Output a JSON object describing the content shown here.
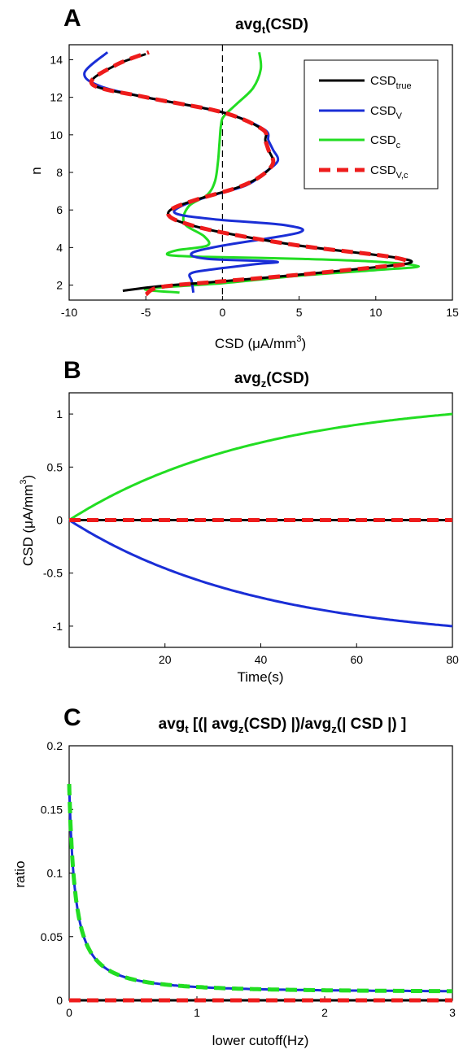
{
  "chart_data": [
    {
      "panel": "A",
      "type": "line",
      "title": {
        "main": "avg",
        "sub": "t",
        "tail": "(CSD)"
      },
      "xlabel": {
        "main": "CSD (μA/mm",
        "sup": "3",
        "tail": ")"
      },
      "ylabel": "n",
      "xlim": [
        -10,
        15
      ],
      "ylim": [
        1.2,
        14.8
      ],
      "xticks": [
        -10,
        -5,
        0,
        5,
        10,
        15
      ],
      "yticks": [
        2,
        4,
        6,
        8,
        10,
        12,
        14
      ],
      "grid": false,
      "legend_position": "top-right",
      "colors": {
        "true": "#000000",
        "V": "#1a2ed6",
        "c": "#22dd22",
        "Vc": "#ee1c1c",
        "ref": "#000000"
      },
      "legend": [
        {
          "main": "CSD",
          "sub": "true"
        },
        {
          "main": "CSD",
          "sub": "V"
        },
        {
          "main": "CSD",
          "sub": "c"
        },
        {
          "main": "CSD",
          "sub": "V,c"
        }
      ],
      "series": [
        {
          "key": "true",
          "color": "#000000",
          "dashed": false,
          "points": [
            [
              -6.5,
              1.7
            ],
            [
              -4,
              1.95
            ],
            [
              0,
              2.2
            ],
            [
              5,
              2.55
            ],
            [
              10,
              2.95
            ],
            [
              12.3,
              3.2
            ],
            [
              11,
              3.5
            ],
            [
              5,
              4.1
            ],
            [
              0,
              4.8
            ],
            [
              -2.5,
              5.3
            ],
            [
              -3.5,
              5.7
            ],
            [
              -3.2,
              6.1
            ],
            [
              -1.5,
              6.6
            ],
            [
              1,
              7.2
            ],
            [
              2.5,
              7.8
            ],
            [
              3.3,
              8.5
            ],
            [
              3,
              9.2
            ],
            [
              2.8,
              9.7
            ],
            [
              2.6,
              10.3
            ],
            [
              0,
              11.2
            ],
            [
              -5,
              12
            ],
            [
              -8.5,
              12.7
            ],
            [
              -7,
              13.7
            ],
            [
              -5,
              14.3
            ]
          ]
        },
        {
          "key": "V",
          "color": "#1a2ed6",
          "dashed": false,
          "points": [
            [
              -1.9,
              1.6
            ],
            [
              -2,
              2.2
            ],
            [
              -2.1,
              2.6
            ],
            [
              -1,
              2.8
            ],
            [
              2,
              3.1
            ],
            [
              3.5,
              3.25
            ],
            [
              -1,
              3.4
            ],
            [
              -2,
              3.7
            ],
            [
              0,
              4.1
            ],
            [
              5,
              4.8
            ],
            [
              4,
              5.2
            ],
            [
              -0.5,
              5.5
            ],
            [
              -3,
              5.8
            ],
            [
              -2.7,
              6.2
            ],
            [
              -1,
              6.7
            ],
            [
              1.5,
              7.3
            ],
            [
              2.6,
              7.9
            ],
            [
              3.6,
              8.6
            ],
            [
              3.3,
              9.2
            ],
            [
              3,
              9.7
            ],
            [
              2.7,
              10.3
            ],
            [
              0,
              11.2
            ],
            [
              -5,
              12
            ],
            [
              -8,
              12.6
            ],
            [
              -9,
              13.3
            ],
            [
              -7.5,
              14.4
            ]
          ]
        },
        {
          "key": "c",
          "color": "#22dd22",
          "dashed": false,
          "points": [
            [
              -2.8,
              1.6
            ],
            [
              -5,
              1.8
            ],
            [
              0,
              2.1
            ],
            [
              5,
              2.5
            ],
            [
              10,
              2.8
            ],
            [
              12.8,
              3
            ],
            [
              10,
              3.25
            ],
            [
              5,
              3.4
            ],
            [
              -1,
              3.5
            ],
            [
              -3.5,
              3.6
            ],
            [
              -3,
              3.85
            ],
            [
              -1,
              4.1
            ],
            [
              -1.2,
              4.6
            ],
            [
              -2.5,
              5.3
            ],
            [
              -2.2,
              6.2
            ],
            [
              -1,
              6.8
            ],
            [
              -0.5,
              7.5
            ],
            [
              -0.3,
              8.5
            ],
            [
              -0.2,
              9.5
            ],
            [
              -0.1,
              10.5
            ],
            [
              0.1,
              11
            ],
            [
              1,
              11.7
            ],
            [
              2,
              12.5
            ],
            [
              2.5,
              13.5
            ],
            [
              2.4,
              14.4
            ]
          ]
        },
        {
          "key": "Vc",
          "color": "#ee1c1c",
          "dashed": true,
          "points": [
            [
              -5,
              1.5
            ],
            [
              -4,
              1.9
            ],
            [
              0,
              2.2
            ],
            [
              5,
              2.55
            ],
            [
              10,
              2.95
            ],
            [
              12,
              3.15
            ],
            [
              11,
              3.5
            ],
            [
              5,
              4.1
            ],
            [
              0,
              4.8
            ],
            [
              -2.5,
              5.3
            ],
            [
              -3.5,
              5.7
            ],
            [
              -3.2,
              6.1
            ],
            [
              -1.5,
              6.6
            ],
            [
              1,
              7.2
            ],
            [
              2.5,
              7.8
            ],
            [
              3.3,
              8.5
            ],
            [
              3,
              9.2
            ],
            [
              2.8,
              9.7
            ],
            [
              2.6,
              10.3
            ],
            [
              0,
              11.2
            ],
            [
              -5,
              12
            ],
            [
              -8.5,
              12.7
            ],
            [
              -7,
              13.7
            ],
            [
              -4.8,
              14.4
            ]
          ]
        }
      ]
    },
    {
      "panel": "B",
      "type": "line",
      "title": {
        "main": "avg",
        "sub": "z",
        "tail": "(CSD)"
      },
      "xlabel": "Time(s)",
      "ylabel": {
        "main": "CSD (μA/mm",
        "sup": "3",
        "tail": ")"
      },
      "xlim": [
        0,
        80
      ],
      "ylim": [
        -1.2,
        1.2
      ],
      "xticks": [
        20,
        40,
        60,
        80
      ],
      "yticks": [
        -1,
        -0.5,
        0,
        0.5,
        1
      ],
      "grid": false,
      "series": [
        {
          "key": "c",
          "color": "#22dd22",
          "model": "saturating",
          "amplitude": 1.0,
          "tau": 40.0,
          "end_value": 1.0
        },
        {
          "key": "V",
          "color": "#1a2ed6",
          "model": "saturating",
          "amplitude": -1.0,
          "tau": 40.0,
          "end_value": -1.0
        },
        {
          "key": "true",
          "color": "#000000",
          "model": "constant",
          "value": 0
        },
        {
          "key": "Vc",
          "color": "#ee1c1c",
          "model": "constant",
          "value": 0,
          "dashed": true
        }
      ]
    },
    {
      "panel": "C",
      "type": "line",
      "title": "avg_t [(| avg_z(CSD) |)/avg_z(| CSD |) ]",
      "title_parts": [
        {
          "text": "avg",
          "sub": false
        },
        {
          "text": "t",
          "sub": true
        },
        {
          "text": " [(| avg",
          "sub": false
        },
        {
          "text": "z",
          "sub": true
        },
        {
          "text": "(CSD) |)/avg",
          "sub": false
        },
        {
          "text": "z",
          "sub": true
        },
        {
          "text": "(| CSD |) ]",
          "sub": false
        }
      ],
      "xlabel": "lower cutoff(Hz)",
      "ylabel": "ratio",
      "xlim": [
        0,
        3
      ],
      "ylim": [
        0,
        0.2
      ],
      "xticks": [
        0,
        1,
        2,
        3
      ],
      "yticks": [
        0,
        0.05,
        0.1,
        0.15,
        0.2
      ],
      "grid": false,
      "series": [
        {
          "key": "V",
          "color": "#1a2ed6",
          "model": "decay",
          "start": 0.17,
          "scale": 0.0065
        },
        {
          "key": "c",
          "color": "#22dd22",
          "model": "decay",
          "start": 0.17,
          "scale": 0.0065,
          "dashed": true
        },
        {
          "key": "true",
          "color": "#000000",
          "model": "constant",
          "value": 0
        },
        {
          "key": "Vc",
          "color": "#ee1c1c",
          "model": "constant",
          "value": 0,
          "dashed": true
        }
      ]
    }
  ],
  "panels": {
    "A": "A",
    "B": "B",
    "C": "C"
  }
}
